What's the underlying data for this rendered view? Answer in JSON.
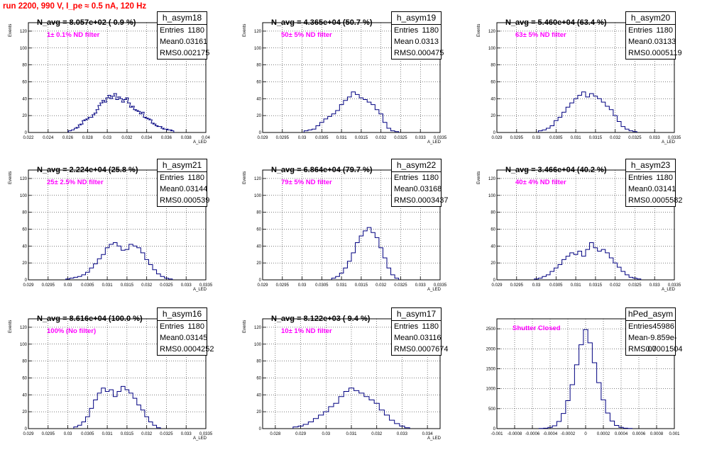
{
  "title": "run 2200,   990 V, I_pe ≈ 0.5 nA, 120 Hz",
  "stat_labels": {
    "entries": "Entries",
    "mean": "Mean",
    "rms": "RMS"
  },
  "chart_data": [
    {
      "type": "bar",
      "name": "h_asym18",
      "navg": "N_avg = 8.057e+02 ( 0.9 %)",
      "filter": "1± 0.1% ND filter",
      "entries": "1180",
      "mean": "0.03161",
      "rms": "0.002175",
      "ylabel": "Events",
      "xlabel": "A_LED",
      "xlim": [
        0.022,
        0.04
      ],
      "ylim": [
        0,
        130
      ],
      "xticks": [
        "0.022",
        "0.024",
        "0.026",
        "0.028",
        "0.03",
        "0.032",
        "0.034",
        "0.036",
        "0.038",
        "0.04"
      ],
      "yticks": [
        "0",
        "20",
        "40",
        "60",
        "80",
        "100",
        "120"
      ],
      "x": [
        0.0262,
        0.0265,
        0.0268,
        0.027,
        0.0272,
        0.0274,
        0.0276,
        0.0278,
        0.028,
        0.0282,
        0.0284,
        0.0286,
        0.0288,
        0.029,
        0.0292,
        0.0294,
        0.0296,
        0.0298,
        0.03,
        0.0302,
        0.0304,
        0.0306,
        0.0308,
        0.031,
        0.0312,
        0.0314,
        0.0316,
        0.0318,
        0.032,
        0.0322,
        0.0324,
        0.0326,
        0.0328,
        0.033,
        0.0332,
        0.0334,
        0.0336,
        0.0338,
        0.034,
        0.0342,
        0.0344,
        0.0346,
        0.0348,
        0.035,
        0.0352,
        0.0354,
        0.0356,
        0.0358,
        0.036,
        0.0362,
        0.0364,
        0.0366
      ],
      "values": [
        2,
        3,
        5,
        6,
        9,
        10,
        14,
        15,
        16,
        18,
        18,
        21,
        23,
        27,
        32,
        35,
        38,
        36,
        41,
        44,
        40,
        43,
        46,
        39,
        42,
        40,
        36,
        39,
        41,
        35,
        30,
        31,
        27,
        26,
        25,
        22,
        24,
        18,
        17,
        16,
        15,
        11,
        10,
        8,
        7,
        7,
        5,
        4,
        4,
        3,
        3,
        2
      ]
    },
    {
      "type": "bar",
      "name": "h_asym19",
      "navg": "N_avg = 4.365e+04 (50.7 %)",
      "filter": "50± 5% ND filter",
      "entries": "1180",
      "mean": "0.0313",
      "rms": "0.000475",
      "ylabel": "Events",
      "xlabel": "A_LED",
      "xlim": [
        0.029,
        0.0335
      ],
      "ylim": [
        0,
        130
      ],
      "xticks": [
        "0.029",
        "0.0295",
        "0.03",
        "0.0305",
        "0.031",
        "0.0315",
        "0.032",
        "0.0325",
        "0.033",
        "0.0335"
      ],
      "yticks": [
        "0",
        "20",
        "40",
        "60",
        "80",
        "100",
        "120"
      ],
      "x": [
        0.0301,
        0.0302,
        0.0303,
        0.0304,
        0.0305,
        0.0306,
        0.0307,
        0.0308,
        0.0309,
        0.031,
        0.0311,
        0.0312,
        0.0313,
        0.0314,
        0.0315,
        0.0316,
        0.0317,
        0.0318,
        0.0319,
        0.032,
        0.0321,
        0.0322,
        0.0323,
        0.0324
      ],
      "values": [
        2,
        3,
        4,
        8,
        12,
        16,
        19,
        22,
        26,
        33,
        38,
        42,
        48,
        45,
        41,
        39,
        36,
        33,
        27,
        22,
        12,
        5,
        2,
        1
      ]
    },
    {
      "type": "bar",
      "name": "h_asym20",
      "navg": "N_avg = 5.460e+04 (63.4 %)",
      "filter": "63± 5% ND filter",
      "entries": "1180",
      "mean": "0.03133",
      "rms": "0.0005119",
      "ylabel": "Events",
      "xlabel": "A_LED",
      "xlim": [
        0.029,
        0.0335
      ],
      "ylim": [
        0,
        130
      ],
      "xticks": [
        "0.029",
        "0.0295",
        "0.03",
        "0.0305",
        "0.031",
        "0.0315",
        "0.032",
        "0.0325",
        "0.033",
        "0.0335"
      ],
      "yticks": [
        "0",
        "20",
        "40",
        "60",
        "80",
        "100",
        "120"
      ],
      "x": [
        0.0301,
        0.0302,
        0.0303,
        0.0304,
        0.0305,
        0.0306,
        0.0307,
        0.0308,
        0.0309,
        0.031,
        0.0311,
        0.0312,
        0.0313,
        0.0314,
        0.0315,
        0.0316,
        0.0317,
        0.0318,
        0.0319,
        0.032,
        0.0321,
        0.0322,
        0.0323,
        0.0324,
        0.0325
      ],
      "values": [
        2,
        3,
        5,
        8,
        14,
        18,
        24,
        30,
        35,
        40,
        44,
        48,
        42,
        46,
        43,
        40,
        36,
        31,
        27,
        20,
        13,
        7,
        4,
        2,
        1
      ]
    },
    {
      "type": "bar",
      "name": "h_asym21",
      "navg": "N_avg = 2.224e+04 (25.8 %)",
      "filter": "25± 2.5% ND filter",
      "entries": "1180",
      "mean": "0.03144",
      "rms": "0.000539",
      "ylabel": "Events",
      "xlabel": "A_LED",
      "xlim": [
        0.029,
        0.0335
      ],
      "ylim": [
        0,
        130
      ],
      "xticks": [
        "0.029",
        "0.0295",
        "0.03",
        "0.0305",
        "0.031",
        "0.0315",
        "0.032",
        "0.0325",
        "0.033",
        "0.0335"
      ],
      "yticks": [
        "0",
        "20",
        "40",
        "60",
        "80",
        "100",
        "120"
      ],
      "x": [
        0.03,
        0.0301,
        0.0302,
        0.0303,
        0.0304,
        0.0305,
        0.0306,
        0.0307,
        0.0308,
        0.0309,
        0.031,
        0.0311,
        0.0312,
        0.0313,
        0.0314,
        0.0315,
        0.0316,
        0.0317,
        0.0318,
        0.0319,
        0.032,
        0.0321,
        0.0322,
        0.0323,
        0.0324,
        0.0325,
        0.0326
      ],
      "values": [
        1,
        2,
        3,
        4,
        6,
        9,
        14,
        19,
        25,
        30,
        38,
        42,
        44,
        40,
        35,
        36,
        42,
        40,
        38,
        32,
        24,
        18,
        12,
        7,
        4,
        2,
        1
      ]
    },
    {
      "type": "bar",
      "name": "h_asym22",
      "navg": "N_avg = 6.864e+04 (79.7 %)",
      "filter": "79± 5% ND filter",
      "entries": "1180",
      "mean": "0.03168",
      "rms": "0.0003437",
      "ylabel": "Events",
      "xlabel": "A_LED",
      "xlim": [
        0.029,
        0.0335
      ],
      "ylim": [
        0,
        130
      ],
      "xticks": [
        "0.029",
        "0.0295",
        "0.03",
        "0.0305",
        "0.031",
        "0.0315",
        "0.032",
        "0.0325",
        "0.033",
        "0.0335"
      ],
      "yticks": [
        "0",
        "20",
        "40",
        "60",
        "80",
        "100",
        "120"
      ],
      "x": [
        0.0308,
        0.0309,
        0.031,
        0.0311,
        0.0312,
        0.0313,
        0.0314,
        0.0315,
        0.0316,
        0.0317,
        0.0318,
        0.0319,
        0.032,
        0.0321,
        0.0322,
        0.0323,
        0.0324
      ],
      "values": [
        2,
        4,
        8,
        14,
        22,
        32,
        44,
        52,
        58,
        62,
        56,
        50,
        38,
        26,
        14,
        6,
        2
      ]
    },
    {
      "type": "bar",
      "name": "h_asym23",
      "navg": "N_avg = 3.466e+04 (40.2 %)",
      "filter": "40± 4% ND filter",
      "entries": "1180",
      "mean": "0.03141",
      "rms": "0.0005582",
      "ylabel": "Events",
      "xlabel": "A_LED",
      "xlim": [
        0.029,
        0.0335
      ],
      "ylim": [
        0,
        130
      ],
      "xticks": [
        "0.029",
        "0.0295",
        "0.03",
        "0.0305",
        "0.031",
        "0.0315",
        "0.032",
        "0.0325",
        "0.033",
        "0.0335"
      ],
      "yticks": [
        "0",
        "20",
        "40",
        "60",
        "80",
        "100",
        "120"
      ],
      "x": [
        0.03,
        0.0301,
        0.0302,
        0.0303,
        0.0304,
        0.0305,
        0.0306,
        0.0307,
        0.0308,
        0.0309,
        0.031,
        0.0311,
        0.0312,
        0.0313,
        0.0314,
        0.0315,
        0.0316,
        0.0317,
        0.0318,
        0.0319,
        0.032,
        0.0321,
        0.0322,
        0.0323,
        0.0324,
        0.0325,
        0.0326
      ],
      "values": [
        1,
        2,
        4,
        6,
        10,
        14,
        18,
        24,
        28,
        32,
        30,
        34,
        28,
        36,
        44,
        38,
        34,
        36,
        32,
        26,
        20,
        15,
        10,
        6,
        3,
        2,
        1
      ]
    },
    {
      "type": "bar",
      "name": "h_asym16",
      "navg": "N_avg = 8.616e+04 (100.0 %)",
      "filter": "100% (No filter)",
      "entries": "1180",
      "mean": "0.03145",
      "rms": "0.0004252",
      "ylabel": "Events",
      "xlabel": "A_LED",
      "xlim": [
        0.029,
        0.0335
      ],
      "ylim": [
        0,
        130
      ],
      "xticks": [
        "0.029",
        "0.0295",
        "0.03",
        "0.0305",
        "0.031",
        "0.0315",
        "0.032",
        "0.0325",
        "0.033",
        "0.0335"
      ],
      "yticks": [
        "0",
        "20",
        "40",
        "60",
        "80",
        "100",
        "120"
      ],
      "x": [
        0.0302,
        0.0303,
        0.0304,
        0.0305,
        0.0306,
        0.0307,
        0.0308,
        0.0309,
        0.031,
        0.0311,
        0.0312,
        0.0313,
        0.0314,
        0.0315,
        0.0316,
        0.0317,
        0.0318,
        0.0319,
        0.032,
        0.0321,
        0.0322,
        0.0323
      ],
      "values": [
        2,
        4,
        8,
        14,
        24,
        34,
        42,
        48,
        44,
        46,
        38,
        44,
        50,
        46,
        42,
        36,
        28,
        22,
        14,
        8,
        4,
        1
      ]
    },
    {
      "type": "bar",
      "name": "h_asym17",
      "navg": "N_avg = 8.122e+03 ( 9.4 %)",
      "filter": "10± 1% ND filter",
      "entries": "1180",
      "mean": "0.03116",
      "rms": "0.0007674",
      "ylabel": "Events",
      "xlabel": "A_LED",
      "xlim": [
        0.0275,
        0.0345
      ],
      "ylim": [
        0,
        130
      ],
      "xticks": [
        "0.028",
        "0.029",
        "0.03",
        "0.031",
        "0.032",
        "0.033",
        "0.034"
      ],
      "yticks": [
        "0",
        "20",
        "40",
        "60",
        "80",
        "100",
        "120"
      ],
      "x": [
        0.0288,
        0.029,
        0.0292,
        0.0294,
        0.0296,
        0.0298,
        0.03,
        0.0302,
        0.0304,
        0.0306,
        0.0308,
        0.031,
        0.0312,
        0.0314,
        0.0316,
        0.0318,
        0.032,
        0.0322,
        0.0324,
        0.0326,
        0.0328,
        0.033,
        0.0332
      ],
      "values": [
        2,
        3,
        5,
        8,
        12,
        16,
        20,
        26,
        30,
        38,
        44,
        48,
        45,
        42,
        38,
        34,
        30,
        22,
        16,
        10,
        6,
        3,
        1
      ]
    },
    {
      "type": "bar",
      "name": "hPed_asym",
      "navg": "",
      "filter": "Shutter Closed",
      "entries": "45986",
      "mean": "-9.859e-07",
      "rms": "0.0001504",
      "ylabel": "",
      "xlabel": "",
      "xlim": [
        -0.001,
        0.001
      ],
      "ylim": [
        0,
        2750
      ],
      "xticks": [
        "-0.001",
        "-0.0008",
        "-0.0006",
        "-0.0004",
        "-0.0002",
        "0",
        "0.0002",
        "0.0004",
        "0.0006",
        "0.0008",
        "0.001"
      ],
      "yticks": [
        "0",
        "500",
        "1000",
        "1500",
        "2000",
        "2500"
      ],
      "x": [
        -0.0005,
        -0.00045,
        -0.0004,
        -0.00035,
        -0.0003,
        -0.00025,
        -0.0002,
        -0.00015,
        -0.0001,
        -5e-05,
        0,
        5e-05,
        0.0001,
        0.00015,
        0.0002,
        0.00025,
        0.0003,
        0.00035,
        0.0004,
        0.00045,
        0.0005
      ],
      "values": [
        4,
        10,
        30,
        70,
        180,
        380,
        700,
        1100,
        1600,
        2100,
        2480,
        2150,
        1650,
        1150,
        720,
        390,
        190,
        80,
        30,
        10,
        4
      ]
    }
  ]
}
